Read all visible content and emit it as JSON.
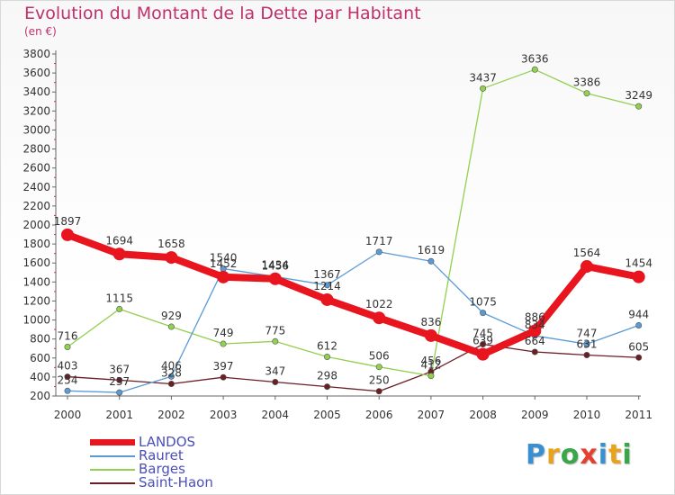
{
  "header": {
    "title": "Evolution du Montant de la Dette par Habitant",
    "unit": "(en €)"
  },
  "logo": {
    "letters": [
      "P",
      "r",
      "o",
      "x",
      "i",
      "t",
      "i"
    ],
    "colors": [
      "#3a8fd0",
      "#e9a21c",
      "#3aa64a",
      "#e5402f",
      "#3a8fd0",
      "#e9a21c",
      "#3aa64a"
    ]
  },
  "chart_data": {
    "type": "line",
    "title": "Evolution du Montant de la Dette par Habitant",
    "subtitle": "(en €)",
    "categories": [
      "2000",
      "2001",
      "2002",
      "2003",
      "2004",
      "2005",
      "2006",
      "2007",
      "2008",
      "2009",
      "2010",
      "2011"
    ],
    "ylim": [
      200,
      3800
    ],
    "yticks": [
      200,
      400,
      600,
      800,
      1000,
      1200,
      1400,
      1600,
      1800,
      2000,
      2200,
      2400,
      2600,
      2800,
      3000,
      3200,
      3400,
      3600,
      3800
    ],
    "grid": false,
    "legend_position": "bottom-left",
    "series": [
      {
        "name": "LANDOS",
        "color": "#e8141e",
        "values": [
          1897,
          1694,
          1658,
          1452,
          1434,
          1214,
          1022,
          836,
          639,
          886,
          1564,
          1454
        ]
      },
      {
        "name": "Rauret",
        "color": "#5b9bd5",
        "values": [
          254,
          237,
          406,
          1540,
          1456,
          1367,
          1717,
          1619,
          1075,
          834,
          747,
          944
        ]
      },
      {
        "name": "Barges",
        "color": "#92d050",
        "values": [
          716,
          1115,
          929,
          749,
          775,
          612,
          506,
          412,
          3437,
          3636,
          3386,
          3249
        ]
      },
      {
        "name": "Saint-Haon",
        "color": "#6b1e24",
        "values": [
          403,
          367,
          328,
          397,
          347,
          298,
          250,
          456,
          745,
          664,
          631,
          605
        ]
      }
    ]
  }
}
